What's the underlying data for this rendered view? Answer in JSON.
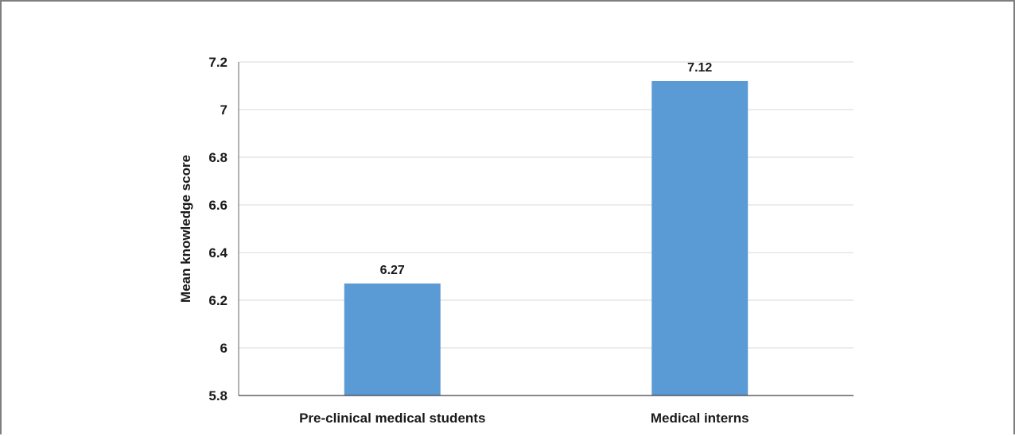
{
  "chart_data": {
    "type": "bar",
    "title": "",
    "xlabel": "",
    "ylabel": "Mean knowledge score",
    "categories": [
      "Pre-clinical medical students",
      "Medical interns"
    ],
    "values": [
      6.27,
      7.12
    ],
    "data_labels": [
      "6.27",
      "7.12"
    ],
    "ylim": [
      5.8,
      7.2
    ],
    "yticks": [
      5.8,
      6,
      6.2,
      6.4,
      6.6,
      6.8,
      7,
      7.2
    ],
    "ytick_labels": [
      "5.8",
      "6",
      "6.2",
      "6.4",
      "6.6",
      "6.8",
      "7",
      "7.2"
    ],
    "grid": true,
    "legend": "none",
    "colors": {
      "bar": "#5b9bd5",
      "grid": "#d9d9d9",
      "axis": "#7f7f7f"
    }
  }
}
